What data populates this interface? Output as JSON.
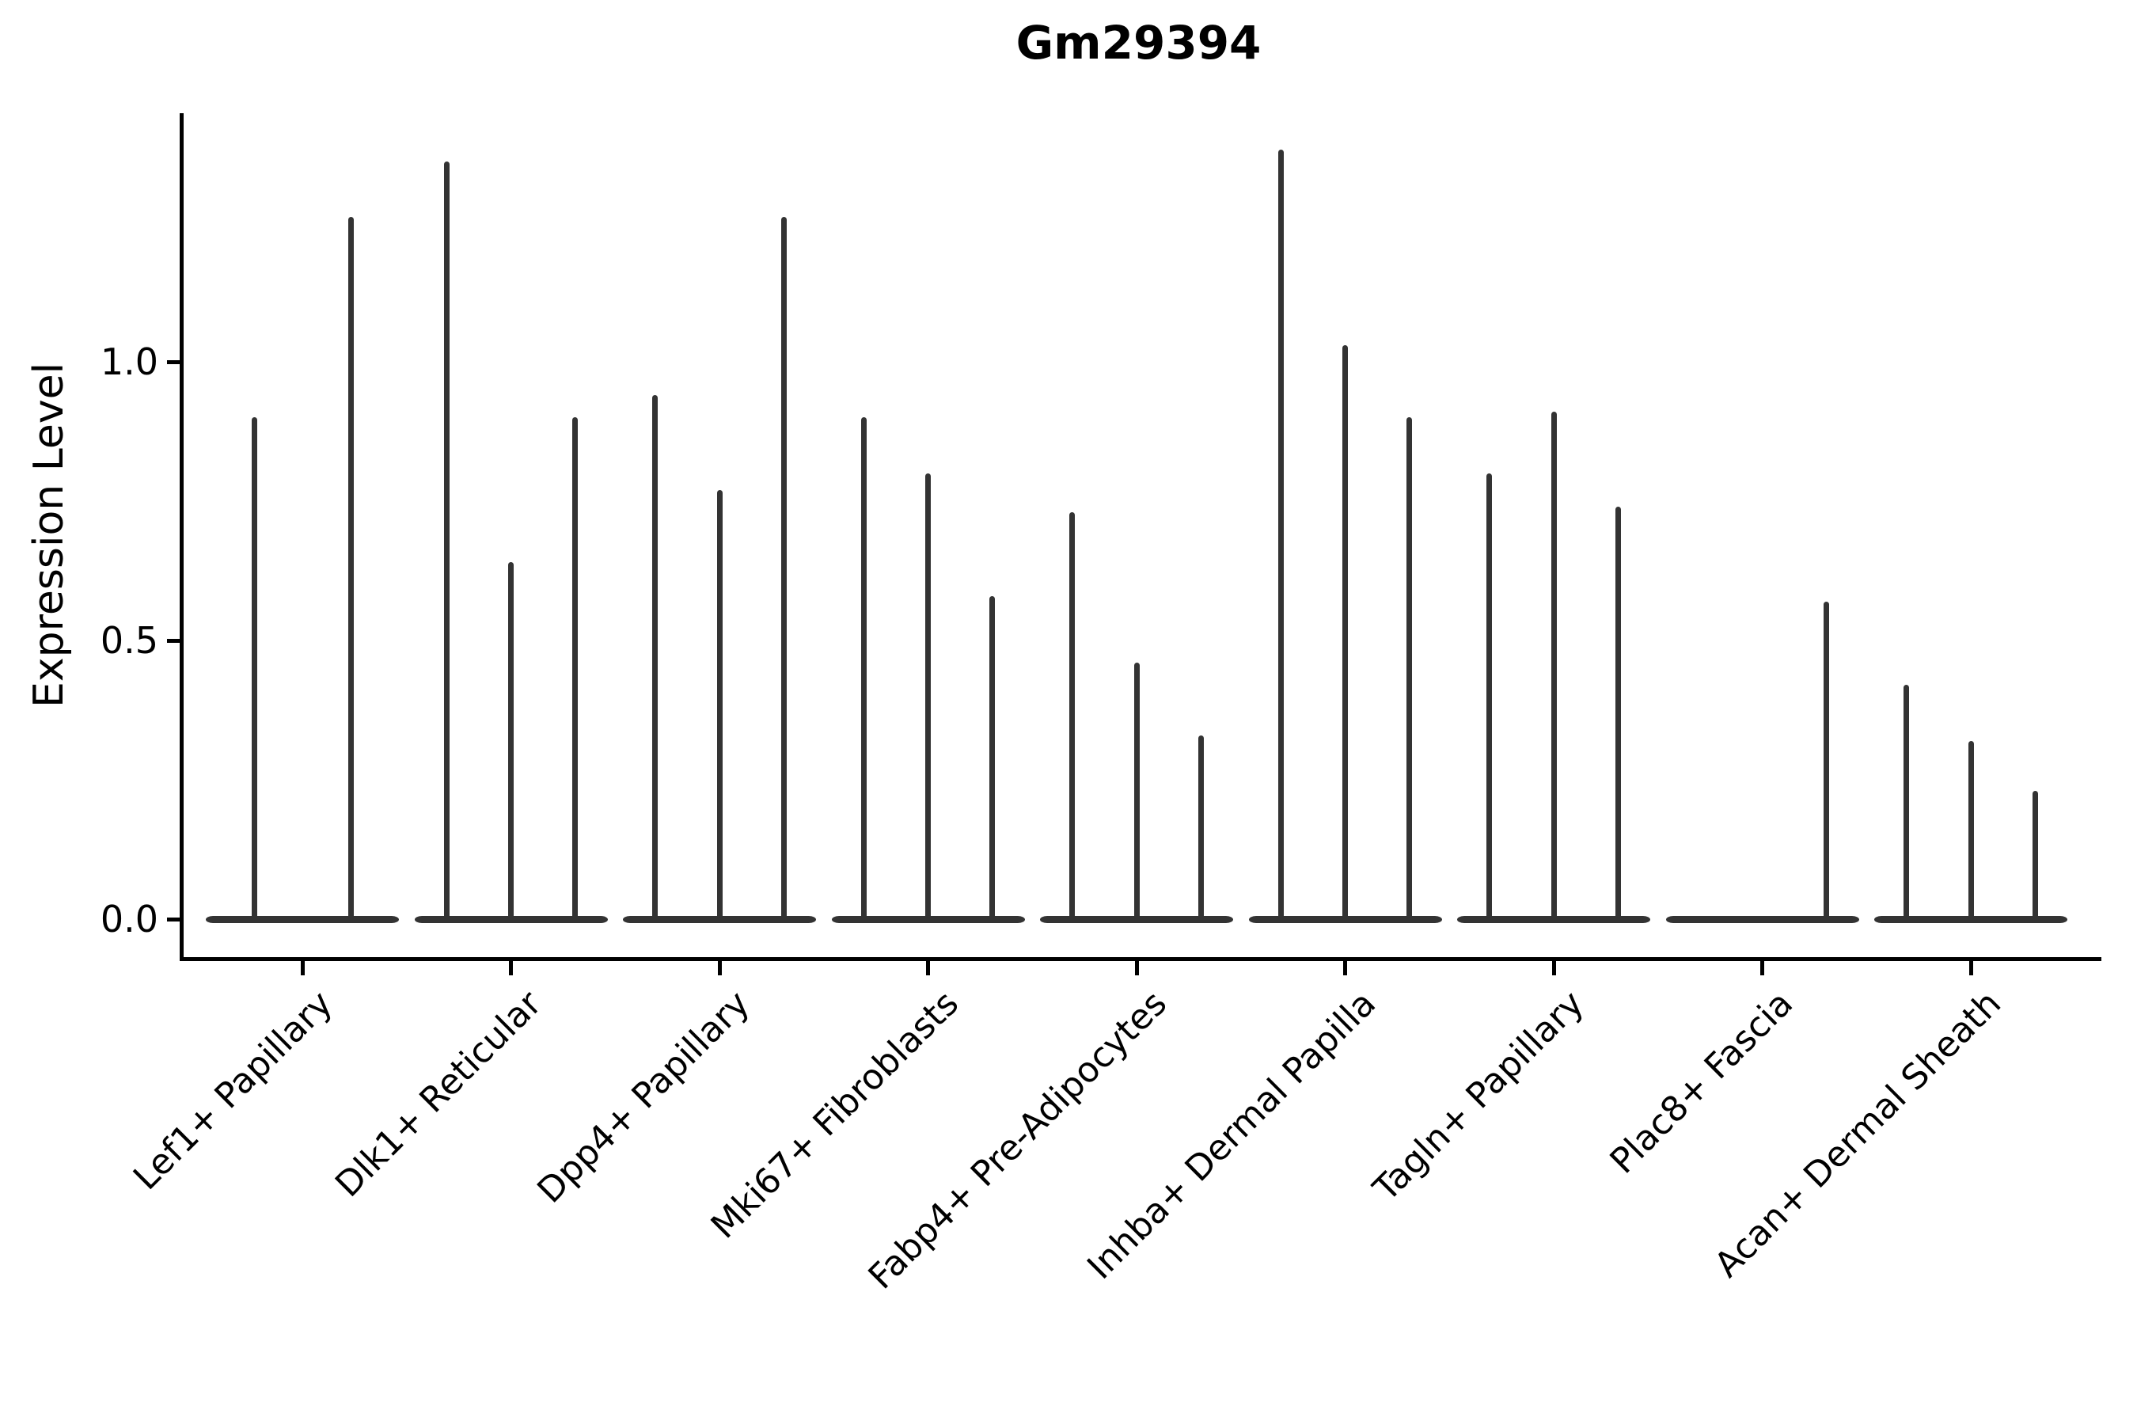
{
  "chart_data": {
    "type": "violin",
    "title": "Gm29394",
    "ylabel": "Expression Level",
    "xlabel": "",
    "legend": "none",
    "grid": false,
    "ylim": [
      -0.07,
      1.45
    ],
    "yticks": [
      {
        "label": "1.0",
        "value": 1.0
      },
      {
        "label": "0.5",
        "value": 0.5
      },
      {
        "label": "0.0",
        "value": 0.0
      }
    ],
    "description": "Thin spike-shaped violins: bulk of distribution is a flat bar at expression 0, each violin rises as a thin spike to its maximum expression value.",
    "categories": [
      "Lef1+ Papillary",
      "Dlk1+ Reticular",
      "Dpp4+ Papillary",
      "Mki67+ Fibroblasts",
      "Fabp4+ Pre-Adipocytes",
      "Inhba+ Dermal Papilla",
      "Tagln+ Papillary",
      "Plac8+ Fascia",
      "Acan+ Dermal Sheath"
    ],
    "groups": [
      {
        "label": "Lef1+ Papillary",
        "spike_max_values": [
          0.9,
          1.26
        ]
      },
      {
        "label": "Dlk1+ Reticular",
        "spike_max_values": [
          1.36,
          0.64,
          0.9
        ]
      },
      {
        "label": "Dpp4+ Papillary",
        "spike_max_values": [
          0.94,
          0.77,
          1.26
        ]
      },
      {
        "label": "Mki67+ Fibroblasts",
        "spike_max_values": [
          0.9,
          0.8,
          0.58
        ]
      },
      {
        "label": "Fabp4+ Pre-Adipocytes",
        "spike_max_values": [
          0.73,
          0.46,
          0.33
        ]
      },
      {
        "label": "Inhba+ Dermal Papilla",
        "spike_max_values": [
          1.38,
          1.03,
          0.9
        ]
      },
      {
        "label": "Tagln+ Papillary",
        "spike_max_values": [
          0.8,
          0.91,
          0.74
        ]
      },
      {
        "label": "Plac8+ Fascia",
        "spike_max_values": [
          0,
          0,
          0.57
        ]
      },
      {
        "label": "Acan+ Dermal Sheath",
        "spike_max_values": [
          0.42,
          0.32,
          0.23
        ]
      }
    ],
    "colors": {
      "violin": "#333333",
      "axis": "#000000",
      "text": "#000000",
      "background": "#ffffff"
    }
  }
}
